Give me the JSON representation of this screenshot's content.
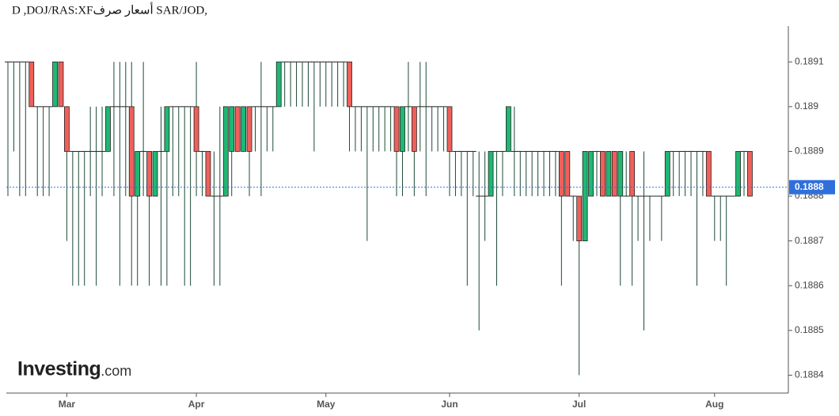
{
  "chart_data": {
    "type": "candlestick",
    "title": "D ,DOJ/RAS:XFأسعار صرف SAR/JOD,",
    "logo": {
      "brand": "Investing",
      "suffix": ".com"
    },
    "up_color": "#1fb873",
    "down_color": "#f0605a",
    "wick_color": "#1d4a36",
    "ylim": [
      0.18836,
      0.18918
    ],
    "yticks": [
      0.1884,
      0.1885,
      0.1886,
      0.1887,
      0.1888,
      0.1889,
      0.189,
      0.1891
    ],
    "last_price": 0.18882,
    "last_price_label": "0.1888",
    "last_price_color": "#2f6fdc",
    "categories": [
      null,
      null,
      null,
      null,
      null,
      null,
      null,
      null,
      null,
      null,
      "Mar",
      null,
      null,
      null,
      null,
      null,
      null,
      null,
      null,
      null,
      null,
      null,
      null,
      null,
      null,
      null,
      null,
      null,
      null,
      null,
      null,
      null,
      "Apr",
      null,
      null,
      null,
      null,
      null,
      null,
      null,
      null,
      null,
      null,
      null,
      null,
      null,
      null,
      null,
      null,
      null,
      null,
      null,
      null,
      null,
      "May",
      null,
      null,
      null,
      null,
      null,
      null,
      null,
      null,
      null,
      null,
      null,
      null,
      null,
      null,
      null,
      null,
      null,
      null,
      null,
      null,
      "Jun",
      null,
      null,
      null,
      null,
      null,
      null,
      null,
      null,
      null,
      null,
      null,
      null,
      null,
      null,
      null,
      null,
      null,
      null,
      null,
      null,
      null,
      "Jul",
      null,
      null,
      null,
      null,
      null,
      null,
      null,
      null,
      null,
      null,
      null,
      null,
      null,
      null,
      null,
      null,
      null,
      null,
      null,
      null,
      null,
      null,
      "Aug",
      null,
      null,
      null,
      null,
      null,
      null
    ],
    "open": [
      0.1891,
      0.1891,
      0.1891,
      0.1891,
      0.1891,
      0.189,
      0.189,
      0.189,
      0.189,
      0.1891,
      0.189,
      0.1889,
      0.1889,
      0.1889,
      0.1889,
      0.1889,
      0.1889,
      0.1889,
      0.189,
      0.189,
      0.189,
      0.189,
      0.1888,
      0.1889,
      0.1889,
      0.1888,
      0.1889,
      0.1889,
      0.189,
      0.189,
      0.189,
      0.189,
      0.189,
      0.1889,
      0.1889,
      0.1888,
      0.1888,
      0.1888,
      0.1889,
      0.189,
      0.1889,
      0.189,
      0.189,
      0.189,
      0.189,
      0.189,
      0.189,
      0.1891,
      0.1891,
      0.1891,
      0.1891,
      0.1891,
      0.1891,
      0.1891,
      0.1891,
      0.1891,
      0.1891,
      0.1891,
      0.1891,
      0.189,
      0.189,
      0.189,
      0.189,
      0.189,
      0.189,
      0.189,
      0.189,
      0.1889,
      0.189,
      0.189,
      0.189,
      0.189,
      0.189,
      0.189,
      0.189,
      0.189,
      0.1889,
      0.1889,
      0.1889,
      0.1889,
      0.1888,
      0.1888,
      0.1888,
      0.1889,
      0.1889,
      0.1889,
      0.1889,
      0.1889,
      0.1889,
      0.1889,
      0.1889,
      0.1889,
      0.1889,
      0.1889,
      0.1889,
      0.1889,
      0.1888,
      0.1888,
      0.1887,
      0.1888,
      0.1889,
      0.1889,
      0.1888,
      0.1889,
      0.1888,
      0.1888,
      0.1889,
      0.1888,
      0.1888,
      0.1888,
      0.1888,
      0.1888,
      0.1888,
      0.1889,
      0.1889,
      0.1889,
      0.1889,
      0.1889,
      0.1889,
      0.1889,
      0.1888,
      0.1888,
      0.1888,
      0.1888,
      0.1888,
      0.1889,
      0.1889
    ],
    "high": [
      0.1891,
      0.1891,
      0.1891,
      0.1891,
      0.1891,
      0.189,
      0.189,
      0.189,
      0.1891,
      0.1891,
      0.189,
      0.1889,
      0.1889,
      0.1889,
      0.189,
      0.189,
      0.189,
      0.189,
      0.1891,
      0.1891,
      0.1891,
      0.1891,
      0.1889,
      0.1891,
      0.1889,
      0.1889,
      0.189,
      0.189,
      0.189,
      0.189,
      0.189,
      0.189,
      0.1891,
      0.1889,
      0.1889,
      0.1889,
      0.189,
      0.189,
      0.189,
      0.189,
      0.189,
      0.189,
      0.189,
      0.1891,
      0.189,
      0.189,
      0.1891,
      0.1891,
      0.1891,
      0.1891,
      0.1891,
      0.1891,
      0.1891,
      0.1891,
      0.1891,
      0.1891,
      0.1891,
      0.1891,
      0.1891,
      0.189,
      0.189,
      0.189,
      0.189,
      0.189,
      0.189,
      0.189,
      0.189,
      0.189,
      0.1891,
      0.189,
      0.1891,
      0.1891,
      0.189,
      0.189,
      0.189,
      0.189,
      0.1889,
      0.1889,
      0.1889,
      0.1889,
      0.1889,
      0.1889,
      0.1889,
      0.1889,
      0.1889,
      0.189,
      0.189,
      0.1889,
      0.1889,
      0.1889,
      0.1889,
      0.1889,
      0.1889,
      0.1889,
      0.1889,
      0.1889,
      0.1888,
      0.1888,
      0.1889,
      0.1889,
      0.1889,
      0.1889,
      0.1889,
      0.1889,
      0.1889,
      0.1889,
      0.1889,
      0.1888,
      0.1889,
      0.1888,
      0.1888,
      0.1888,
      0.1889,
      0.1889,
      0.1889,
      0.1889,
      0.1889,
      0.1889,
      0.1889,
      0.1889,
      0.1888,
      0.1888,
      0.1888,
      0.1888,
      0.1889,
      0.1889,
      0.1889
    ],
    "low": [
      0.1888,
      0.1889,
      0.1888,
      0.1888,
      0.189,
      0.1888,
      0.1888,
      0.1888,
      0.189,
      0.189,
      0.1887,
      0.1886,
      0.1886,
      0.1886,
      0.1888,
      0.1886,
      0.1888,
      0.1889,
      0.1888,
      0.1886,
      0.1888,
      0.1886,
      0.1886,
      0.1888,
      0.1886,
      0.1888,
      0.1886,
      0.1886,
      0.1888,
      0.1888,
      0.1886,
      0.1886,
      0.1888,
      0.1888,
      0.1888,
      0.1886,
      0.1886,
      0.1888,
      0.1888,
      0.1889,
      0.1889,
      0.1888,
      0.1889,
      0.1888,
      0.1889,
      0.1889,
      0.189,
      0.189,
      0.189,
      0.189,
      0.189,
      0.189,
      0.1889,
      0.189,
      0.189,
      0.189,
      0.189,
      0.189,
      0.1889,
      0.1889,
      0.1889,
      0.1887,
      0.1889,
      0.1889,
      0.1889,
      0.1889,
      0.1888,
      0.1888,
      0.1889,
      0.1888,
      0.1889,
      0.1888,
      0.1889,
      0.1889,
      0.1889,
      0.1888,
      0.1888,
      0.1888,
      0.1886,
      0.1888,
      0.1885,
      0.1887,
      0.1888,
      0.1886,
      0.1888,
      0.1889,
      0.1888,
      0.1888,
      0.1888,
      0.1888,
      0.1888,
      0.1888,
      0.1888,
      0.1888,
      0.1886,
      0.1888,
      0.1887,
      0.1884,
      0.1887,
      0.1888,
      0.1888,
      0.1888,
      0.1888,
      0.1888,
      0.1886,
      0.1888,
      0.1886,
      0.1887,
      0.1885,
      0.1887,
      0.1888,
      0.1887,
      0.1888,
      0.1888,
      0.1888,
      0.1888,
      0.1888,
      0.1886,
      0.1888,
      0.1888,
      0.1887,
      0.1887,
      0.1886,
      0.1888,
      0.1888,
      0.1888,
      0.1888
    ],
    "close": [
      0.1891,
      0.1891,
      0.1891,
      0.1891,
      0.189,
      0.189,
      0.189,
      0.189,
      0.1891,
      0.189,
      0.1889,
      0.1889,
      0.1889,
      0.1889,
      0.1889,
      0.1889,
      0.1889,
      0.189,
      0.189,
      0.189,
      0.189,
      0.1888,
      0.1889,
      0.1889,
      0.1888,
      0.1889,
      0.1889,
      0.189,
      0.189,
      0.189,
      0.189,
      0.189,
      0.1889,
      0.1889,
      0.1888,
      0.1888,
      0.1888,
      0.189,
      0.189,
      0.1889,
      0.189,
      0.1889,
      0.189,
      0.189,
      0.189,
      0.189,
      0.1891,
      0.1891,
      0.1891,
      0.1891,
      0.1891,
      0.1891,
      0.1891,
      0.1891,
      0.1891,
      0.1891,
      0.1891,
      0.1891,
      0.189,
      0.189,
      0.189,
      0.189,
      0.189,
      0.189,
      0.189,
      0.189,
      0.1889,
      0.189,
      0.189,
      0.1889,
      0.189,
      0.189,
      0.189,
      0.189,
      0.189,
      0.1889,
      0.1889,
      0.1889,
      0.1889,
      0.1889,
      0.1888,
      0.1888,
      0.1889,
      0.1889,
      0.1889,
      0.189,
      0.1889,
      0.1889,
      0.1889,
      0.1889,
      0.1889,
      0.1889,
      0.1889,
      0.1889,
      0.1888,
      0.1888,
      0.1888,
      0.1887,
      0.1889,
      0.1889,
      0.1889,
      0.1888,
      0.1889,
      0.1888,
      0.1889,
      0.1888,
      0.1888,
      0.1888,
      0.1888,
      0.1888,
      0.1888,
      0.1888,
      0.1889,
      0.1889,
      0.1889,
      0.1889,
      0.1889,
      0.1889,
      0.1889,
      0.1888,
      0.1888,
      0.1888,
      0.1888,
      0.1888,
      0.1889,
      0.1889,
      0.1888
    ]
  }
}
